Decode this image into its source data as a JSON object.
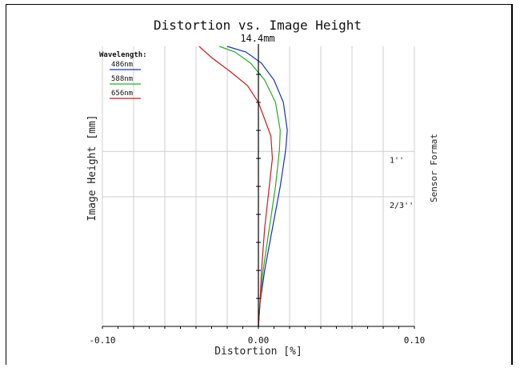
{
  "chart_data": {
    "type": "line",
    "title": "Distortion vs. Image Height",
    "subtitle": "14.4mm",
    "xlabel": "Distortion [%]",
    "ylabel": "Image Height [mm]",
    "right_label": "Sensor Format",
    "xlim": [
      -0.1,
      0.1
    ],
    "ylim": [
      0,
      1
    ],
    "x_tick_labels": [
      "-0.10",
      "0.00",
      "0.10"
    ],
    "x_tick_values": [
      -0.1,
      0.0,
      0.1
    ],
    "grid": true,
    "legend_title": "Wavelength:",
    "legend_position": "top-left",
    "sensor_marks": [
      {
        "label": "1''",
        "y": 0.625
      },
      {
        "label": "2/3''",
        "y": 0.463
      }
    ],
    "series": [
      {
        "name": "486nm",
        "color": "#1a2ec8",
        "points": [
          [
            0.0,
            0.0
          ],
          [
            0.001,
            0.08
          ],
          [
            0.004,
            0.2
          ],
          [
            0.009,
            0.35
          ],
          [
            0.014,
            0.5
          ],
          [
            0.0175,
            0.63
          ],
          [
            0.0185,
            0.7
          ],
          [
            0.016,
            0.8
          ],
          [
            0.01,
            0.88
          ],
          [
            0.002,
            0.94
          ],
          [
            -0.008,
            0.98
          ],
          [
            -0.02,
            1.0
          ]
        ]
      },
      {
        "name": "588nm",
        "color": "#22b022",
        "points": [
          [
            0.0,
            0.0
          ],
          [
            0.001,
            0.08
          ],
          [
            0.003,
            0.2
          ],
          [
            0.007,
            0.35
          ],
          [
            0.011,
            0.5
          ],
          [
            0.0135,
            0.63
          ],
          [
            0.014,
            0.7
          ],
          [
            0.011,
            0.8
          ],
          [
            0.004,
            0.88
          ],
          [
            -0.005,
            0.94
          ],
          [
            -0.015,
            0.98
          ],
          [
            -0.025,
            1.0
          ]
        ]
      },
      {
        "name": "656nm",
        "color": "#cc1a1a",
        "points": [
          [
            0.0,
            0.0
          ],
          [
            0.001,
            0.08
          ],
          [
            0.002,
            0.2
          ],
          [
            0.004,
            0.35
          ],
          [
            0.007,
            0.5
          ],
          [
            0.009,
            0.6
          ],
          [
            0.008,
            0.68
          ],
          [
            0.004,
            0.74
          ],
          [
            0.0,
            0.8
          ],
          [
            -0.007,
            0.86
          ],
          [
            -0.018,
            0.91
          ],
          [
            -0.03,
            0.96
          ],
          [
            -0.038,
            1.0
          ]
        ]
      }
    ]
  }
}
